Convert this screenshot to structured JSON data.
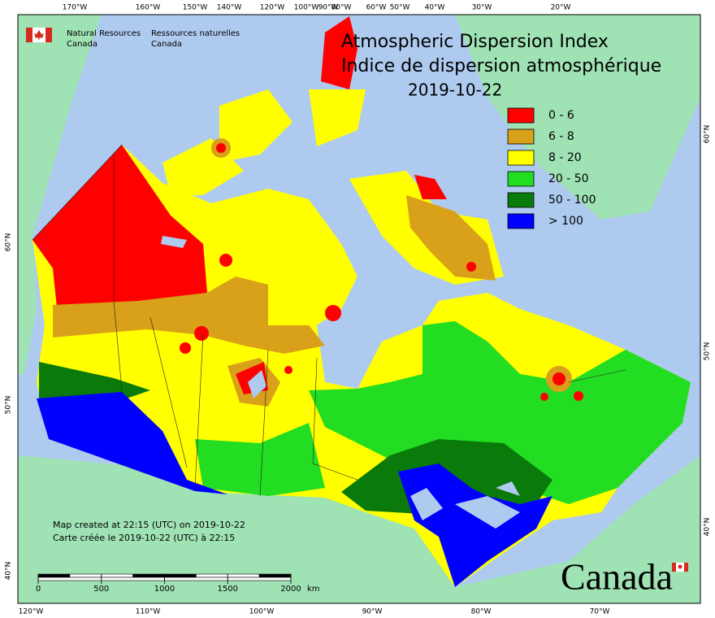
{
  "frame": {
    "lon_labels_top": [
      "170°W",
      "160°W",
      "150°W",
      "140°W",
      "120°W",
      "100°W",
      "90°W",
      "80°W",
      "60°W",
      "50°W",
      "40°W",
      "30°W",
      "20°W"
    ],
    "lon_labels_bottom": [
      "120°W",
      "110°W",
      "100°W",
      "90°W",
      "80°W",
      "70°W"
    ],
    "lat_labels_left": [
      "60°N",
      "50°N",
      "40°N"
    ],
    "lat_labels_right": [
      "60°N",
      "50°N",
      "40°N"
    ]
  },
  "logo": {
    "english": [
      "Natural Resources",
      "Canada"
    ],
    "french": [
      "Ressources naturelles",
      "Canada"
    ]
  },
  "title": {
    "lines": [
      "Atmospheric Dispersion Index",
      "Indice de dispersion atmosphérique"
    ],
    "date": "2019-10-22"
  },
  "legend": [
    {
      "label": "0 - 6",
      "color": "#ff0000"
    },
    {
      "label": "6 - 8",
      "color": "#d9a01a"
    },
    {
      "label": "8 - 20",
      "color": "#ffff00"
    },
    {
      "label": "20 - 50",
      "color": "#22dd22"
    },
    {
      "label": "50 - 100",
      "color": "#0a7a0a"
    },
    {
      "label": "> 100",
      "color": "#0000ff"
    }
  ],
  "notes": [
    "Map created at 22:15 (UTC) on 2019-10-22",
    "Carte créée le 2019-10-22 (UTC) à 22:15"
  ],
  "scale_bar": {
    "ticks": [
      0,
      500,
      1000,
      1500,
      2000
    ],
    "unit": "km"
  },
  "wordmark": "Canada"
}
